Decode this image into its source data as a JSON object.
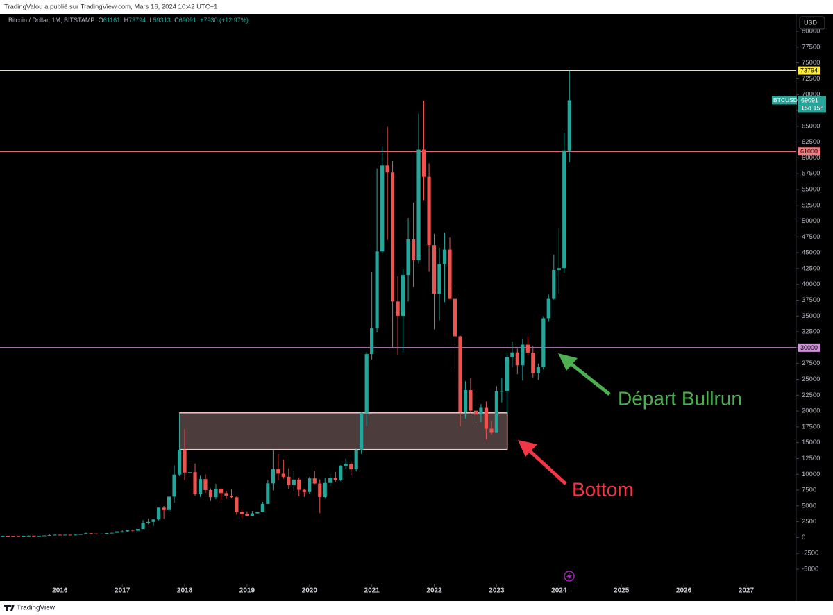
{
  "header": {
    "published": "TradingValou a publié sur TradingView.com, Mars 16, 2024 10:42 UTC+1",
    "brand": "TradingView"
  },
  "chart_data": {
    "type": "candlestick",
    "title": "Bitcoin / Dollar, 1M, BITSTAMP",
    "ohlc_prefix": {
      "open": "O",
      "high": "H",
      "low": "L",
      "close": "C"
    },
    "change": "+7930 (+12.97%)",
    "currency": "USD",
    "symbol_label": "BTCUSD",
    "countdown": "15d 15h",
    "up_color": "#26a69a",
    "down_color": "#ef5350",
    "x": [
      2015.083,
      2015.167,
      2015.25,
      2015.333,
      2015.417,
      2015.5,
      2015.583,
      2015.667,
      2015.75,
      2015.833,
      2015.917,
      2016,
      2016.083,
      2016.167,
      2016.25,
      2016.333,
      2016.417,
      2016.5,
      2016.583,
      2016.667,
      2016.75,
      2016.833,
      2016.917,
      2017,
      2017.083,
      2017.167,
      2017.25,
      2017.333,
      2017.417,
      2017.5,
      2017.583,
      2017.667,
      2017.75,
      2017.833,
      2017.917,
      2018,
      2018.083,
      2018.167,
      2018.25,
      2018.333,
      2018.417,
      2018.5,
      2018.583,
      2018.667,
      2018.75,
      2018.833,
      2018.917,
      2019,
      2019.083,
      2019.167,
      2019.25,
      2019.333,
      2019.417,
      2019.5,
      2019.583,
      2019.667,
      2019.75,
      2019.833,
      2019.917,
      2020,
      2020.083,
      2020.167,
      2020.25,
      2020.333,
      2020.417,
      2020.5,
      2020.583,
      2020.667,
      2020.75,
      2020.833,
      2020.917,
      2021,
      2021.083,
      2021.167,
      2021.25,
      2021.333,
      2021.417,
      2021.5,
      2021.583,
      2021.667,
      2021.75,
      2021.833,
      2021.917,
      2022,
      2022.083,
      2022.167,
      2022.25,
      2022.333,
      2022.417,
      2022.5,
      2022.583,
      2022.667,
      2022.75,
      2022.833,
      2022.917,
      2023,
      2023.083,
      2023.167,
      2023.25,
      2023.333,
      2023.417,
      2023.5,
      2023.583,
      2023.667,
      2023.75,
      2023.833,
      2023.917,
      2024,
      2024.083,
      2024.167
    ],
    "open": [
      217,
      254,
      244,
      236,
      230,
      263,
      284,
      230,
      236,
      314,
      377,
      430,
      368,
      437,
      416,
      448,
      531,
      673,
      624,
      575,
      608,
      700,
      745,
      966,
      970,
      1190,
      1080,
      1350,
      2300,
      2480,
      2870,
      4730,
      4340,
      6470,
      9950,
      13880,
      10270,
      10330,
      6930,
      9240,
      7500,
      6390,
      7730,
      7030,
      6630,
      6370,
      4040,
      3740,
      3440,
      3820,
      4100,
      5320,
      8560,
      10820,
      10090,
      9600,
      8310,
      9160,
      7540,
      7190,
      9350,
      8540,
      6410,
      8630,
      9450,
      9140,
      11350,
      11650,
      10780,
      13800,
      19700,
      28990,
      33110,
      45200,
      58800,
      57700,
      37300,
      35040,
      41490,
      47100,
      43820,
      61300,
      57000,
      46200,
      38500,
      43200,
      45500,
      37700,
      31800,
      19900,
      23300,
      20050,
      19430,
      20500,
      17200,
      16550,
      23130,
      23150,
      28480,
      29250,
      27220,
      30480,
      29230,
      25940,
      26970,
      34650,
      37720,
      42280,
      42580,
      61161
    ],
    "high": [
      265,
      300,
      260,
      247,
      268,
      318,
      286,
      245,
      334,
      502,
      469,
      462,
      448,
      441,
      468,
      552,
      780,
      704,
      626,
      629,
      722,
      755,
      979,
      1153,
      1210,
      1300,
      1370,
      2760,
      2980,
      2920,
      4740,
      4980,
      6490,
      11400,
      19670,
      17180,
      11790,
      11700,
      9760,
      10000,
      7780,
      8500,
      7760,
      7420,
      7680,
      6560,
      4420,
      4140,
      4200,
      4120,
      5650,
      9100,
      13880,
      13200,
      12330,
      10950,
      10540,
      9510,
      7750,
      9580,
      10500,
      9190,
      9460,
      10080,
      10380,
      11440,
      12470,
      12080,
      14100,
      19860,
      29300,
      41950,
      58330,
      61780,
      64900,
      59500,
      41300,
      42400,
      50500,
      52900,
      67000,
      69000,
      59100,
      48000,
      45800,
      48200,
      47400,
      40000,
      31900,
      24700,
      25200,
      22800,
      21100,
      21500,
      18400,
      23900,
      25250,
      29200,
      31000,
      29850,
      31400,
      31800,
      30200,
      27500,
      35000,
      38400,
      44700,
      48970,
      64000,
      73794
    ],
    "low": [
      212,
      236,
      214,
      225,
      220,
      252,
      199,
      225,
      235,
      309,
      346,
      352,
      367,
      405,
      413,
      440,
      526,
      600,
      470,
      568,
      606,
      680,
      743,
      751,
      933,
      891,
      1060,
      1340,
      2100,
      1840,
      2720,
      2970,
      4120,
      5500,
      9700,
      9100,
      5970,
      6600,
      6430,
      7060,
      5780,
      6070,
      5880,
      6100,
      6200,
      3590,
      3130,
      3360,
      3380,
      3730,
      4090,
      5320,
      7450,
      9070,
      9330,
      7710,
      7300,
      6540,
      6430,
      6860,
      8450,
      3850,
      6150,
      8120,
      8820,
      8900,
      10900,
      9830,
      10430,
      13200,
      17600,
      28130,
      32380,
      44950,
      47000,
      30000,
      28800,
      29300,
      37300,
      39600,
      43290,
      53300,
      42000,
      32900,
      34300,
      37200,
      37700,
      26700,
      17600,
      18800,
      19600,
      18150,
      18200,
      15500,
      16300,
      16500,
      21350,
      19550,
      26900,
      25800,
      24800,
      28800,
      25300,
      24900,
      26550,
      34100,
      37600,
      38500,
      41880,
      59313
    ],
    "close": [
      254,
      244,
      236,
      230,
      263,
      284,
      230,
      236,
      314,
      377,
      430,
      368,
      437,
      416,
      448,
      531,
      673,
      624,
      575,
      608,
      700,
      745,
      966,
      970,
      1190,
      1080,
      1350,
      2300,
      2480,
      2870,
      4730,
      4340,
      6470,
      9950,
      13880,
      10270,
      10330,
      6930,
      9240,
      7500,
      6390,
      7730,
      7030,
      6630,
      6370,
      4040,
      3740,
      3440,
      3820,
      4100,
      5320,
      8560,
      10820,
      10090,
      9600,
      8310,
      9160,
      7540,
      7190,
      9350,
      8540,
      6410,
      8630,
      9450,
      9140,
      11350,
      11650,
      10780,
      13800,
      19700,
      28990,
      33110,
      45200,
      58800,
      57700,
      37300,
      35040,
      41490,
      47100,
      43820,
      61300,
      57000,
      46200,
      38500,
      43200,
      45500,
      37700,
      31800,
      19900,
      23300,
      20050,
      19430,
      20500,
      17200,
      16550,
      23130,
      23150,
      28480,
      29250,
      27220,
      30480,
      29230,
      25940,
      26970,
      34650,
      37720,
      42280,
      42580,
      61161,
      69091
    ],
    "xlim": [
      2015.04,
      2027.78
    ],
    "xticks": [
      2016,
      2017,
      2018,
      2019,
      2020,
      2021,
      2022,
      2023,
      2024,
      2025,
      2026,
      2027
    ],
    "ylim": [
      -5000,
      80000
    ],
    "yticks": [
      -5000,
      -2500,
      0,
      2500,
      5000,
      7500,
      10000,
      12500,
      15000,
      17500,
      20000,
      22500,
      25000,
      27500,
      30000,
      32500,
      35000,
      37500,
      40000,
      42500,
      45000,
      47500,
      50000,
      52500,
      55000,
      57500,
      60000,
      62500,
      65000,
      67500,
      70000,
      72500,
      75000,
      77500,
      80000
    ],
    "levels": [
      {
        "value": 73794,
        "color": "#ffeb3b"
      },
      {
        "value": 61000,
        "color": "#f77c80"
      },
      {
        "value": 30000,
        "color": "#ce93d8"
      }
    ],
    "zone": {
      "x_start": 2017.92,
      "x_end": 2023.17,
      "top": 19700,
      "bottom": 13900
    },
    "annotations": [
      {
        "text": "Départ Bullrun",
        "color": "#4caf50"
      },
      {
        "text": "Bottom",
        "color": "#f23645"
      }
    ]
  }
}
